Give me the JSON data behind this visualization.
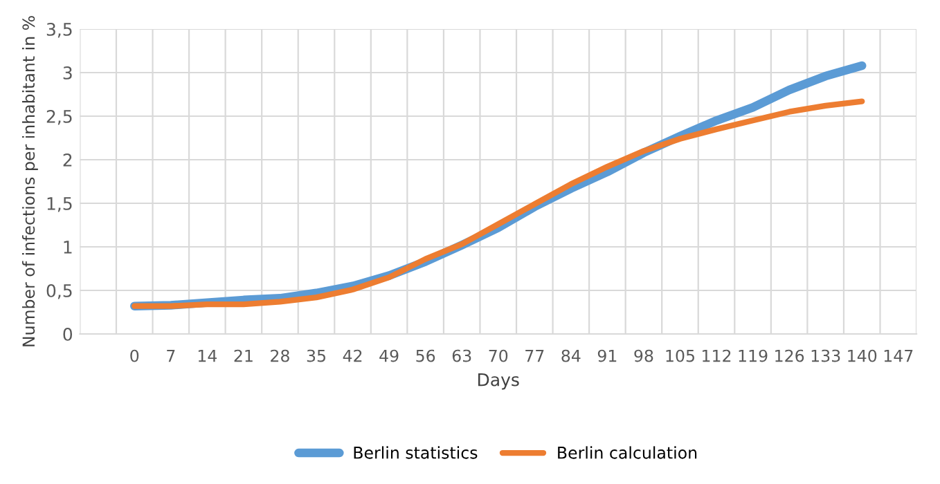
{
  "chart_data": {
    "type": "line",
    "xlabel": "Days",
    "ylabel": "Number of infections per inhabitant in %",
    "categories": [
      null,
      "0",
      "7",
      "14",
      "21",
      "28",
      "35",
      "42",
      "49",
      "56",
      "63",
      "70",
      "77",
      "84",
      "91",
      "98",
      "105",
      "112",
      "119",
      "126",
      "133",
      "140",
      "147"
    ],
    "series": [
      {
        "name": "Berlin statistics",
        "color": "#5b9bd5",
        "values": [
          null,
          0.32,
          0.33,
          0.36,
          0.39,
          0.41,
          0.47,
          0.55,
          0.67,
          0.83,
          1.02,
          1.22,
          1.46,
          1.67,
          1.86,
          2.08,
          2.27,
          2.45,
          2.6,
          2.8,
          2.96,
          3.08,
          null
        ]
      },
      {
        "name": "Berlin calculation",
        "color": "#ed7d31",
        "values": [
          null,
          0.32,
          0.32,
          0.34,
          0.34,
          0.37,
          0.42,
          0.51,
          0.65,
          0.86,
          1.03,
          1.26,
          1.49,
          1.72,
          1.92,
          2.1,
          2.24,
          2.35,
          2.45,
          2.55,
          2.62,
          2.67,
          null
        ]
      }
    ],
    "ylim": [
      0,
      3.5
    ],
    "yticks": [
      0,
      {
        "value": 0.5,
        "label": "0,5"
      },
      1,
      {
        "value": 1.5,
        "label": "1,5"
      },
      2,
      {
        "value": 2.5,
        "label": "2,5"
      },
      3,
      {
        "value": 3.5,
        "label": "3,5"
      }
    ],
    "grid": true,
    "legend": "bottom",
    "marker": "none",
    "line_style": "solid"
  }
}
